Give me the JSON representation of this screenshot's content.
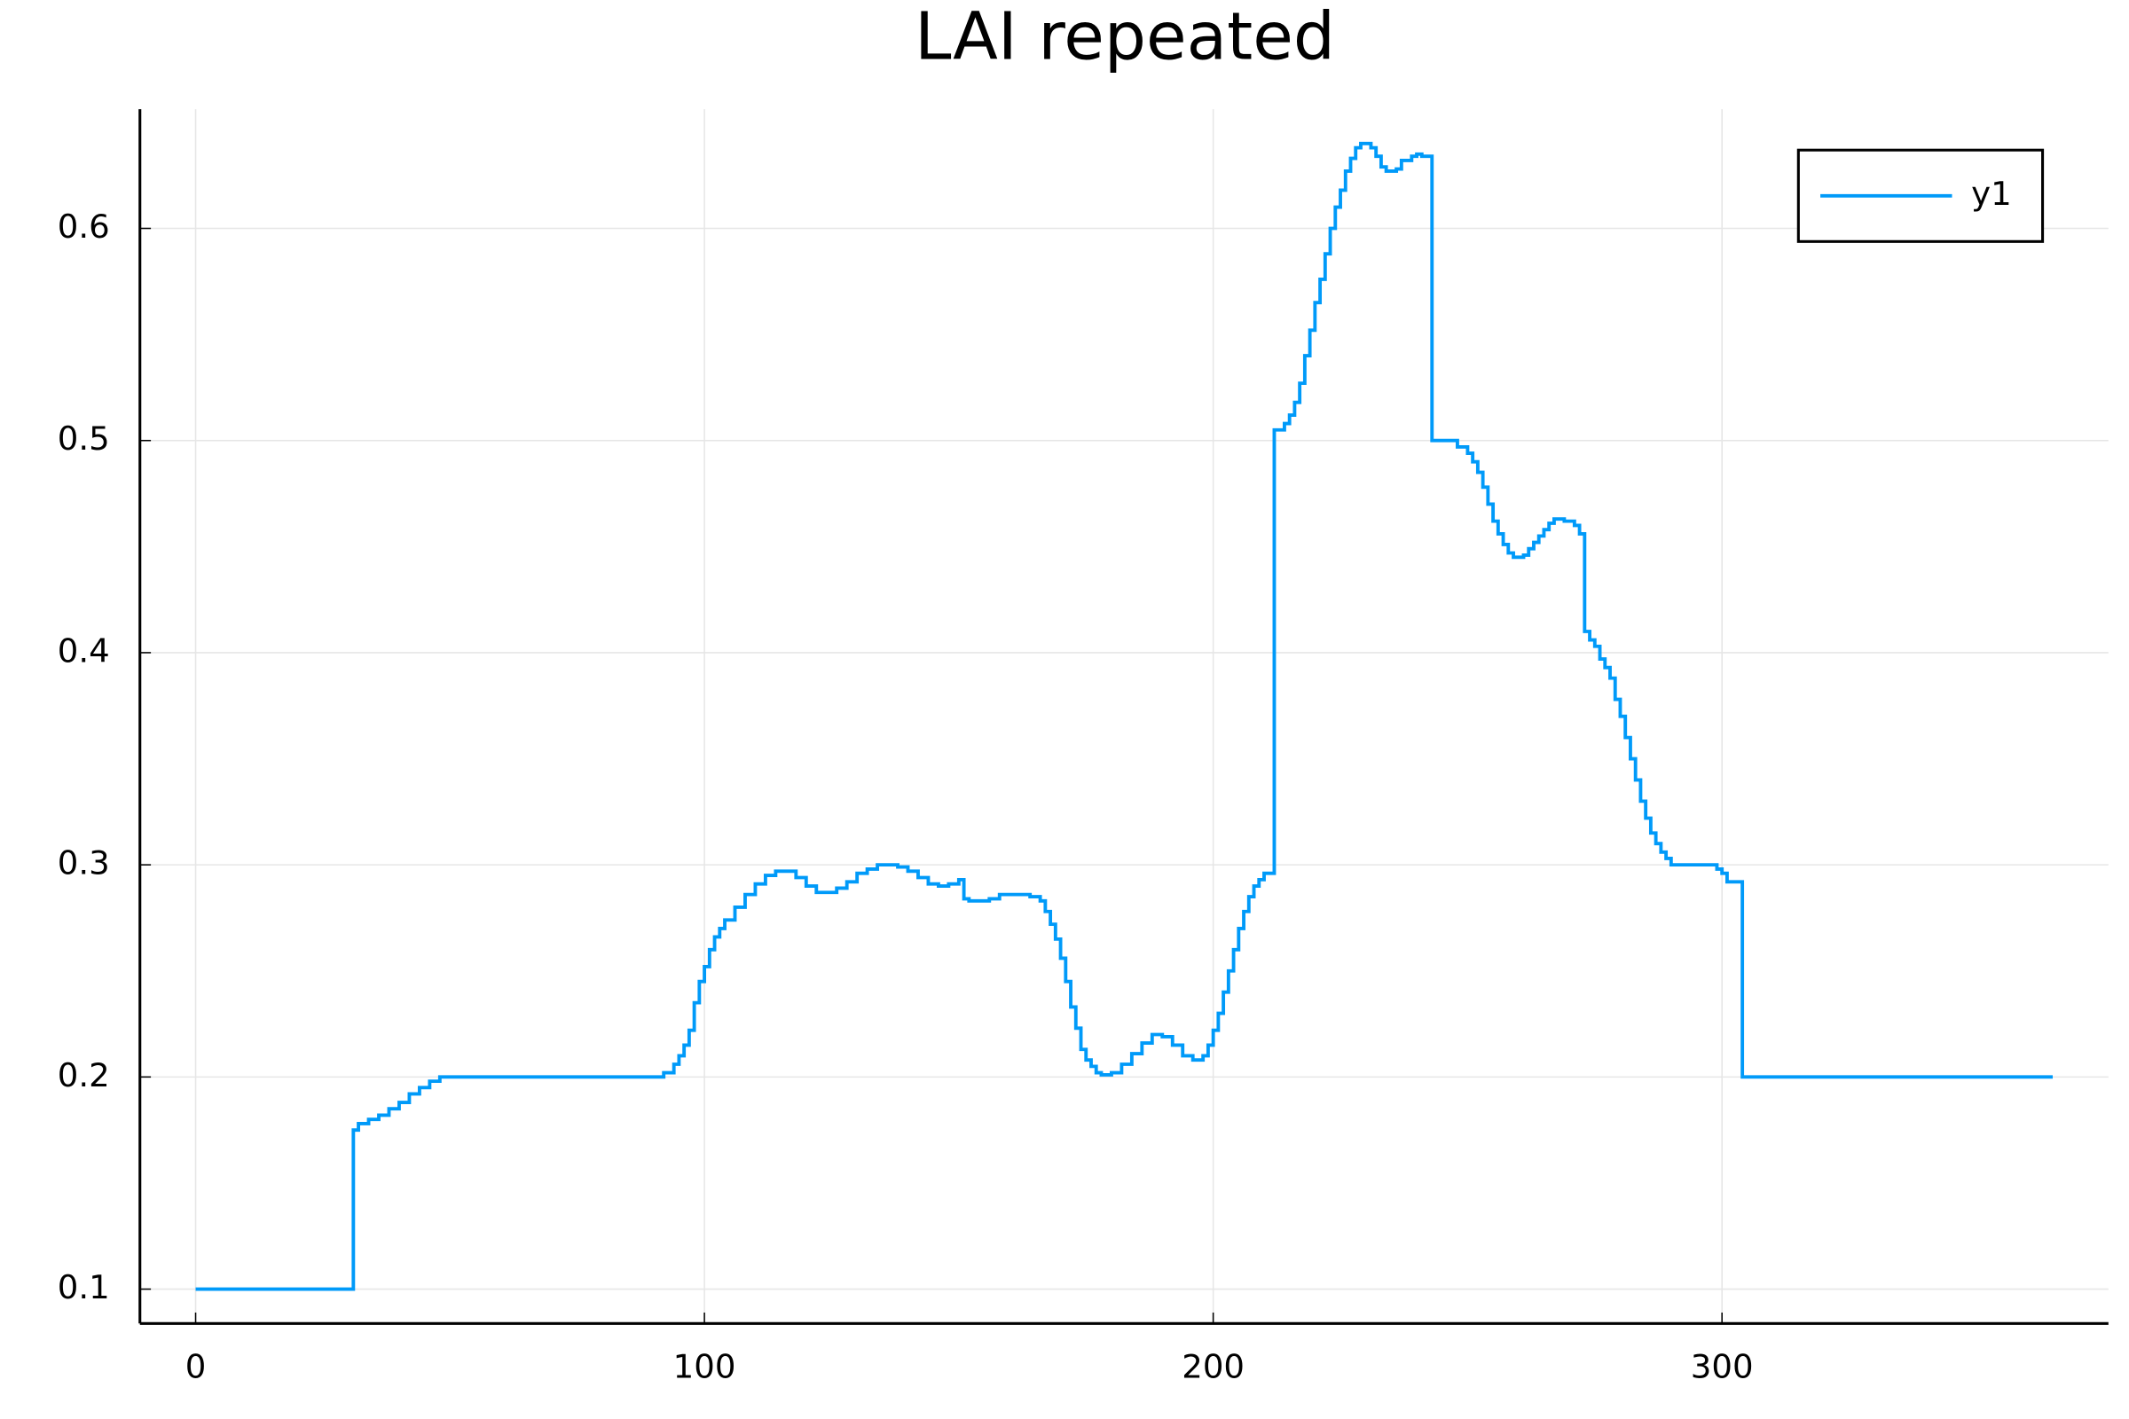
{
  "chart_data": {
    "type": "step",
    "title": "LAI repeated",
    "x": [
      0,
      31,
      32,
      34,
      36,
      38,
      40,
      42,
      44,
      46,
      48,
      92,
      94,
      95,
      96,
      97,
      98,
      99,
      100,
      101,
      102,
      103,
      104,
      106,
      108,
      110,
      112,
      114,
      116,
      118,
      120,
      122,
      124,
      126,
      128,
      130,
      132,
      134,
      136,
      138,
      140,
      142,
      144,
      146,
      148,
      150,
      151,
      152,
      154,
      156,
      158,
      160,
      162,
      164,
      166,
      167,
      168,
      169,
      170,
      171,
      172,
      173,
      174,
      175,
      176,
      177,
      178,
      180,
      182,
      184,
      186,
      188,
      190,
      192,
      194,
      196,
      198,
      199,
      200,
      201,
      202,
      203,
      204,
      205,
      206,
      207,
      208,
      209,
      210,
      212,
      214,
      215,
      216,
      217,
      218,
      219,
      220,
      221,
      222,
      223,
      224,
      225,
      226,
      227,
      228,
      229,
      231,
      232,
      233,
      234,
      236,
      237,
      239,
      240,
      241,
      243,
      248,
      250,
      251,
      252,
      253,
      254,
      255,
      256,
      257,
      258,
      259,
      261,
      262,
      263,
      264,
      265,
      266,
      267,
      269,
      271,
      272,
      273,
      274,
      275,
      276,
      277,
      278,
      279,
      280,
      281,
      282,
      283,
      284,
      285,
      286,
      287,
      288,
      289,
      290,
      299,
      300,
      301,
      304,
      365
    ],
    "series": [
      {
        "name": "y1",
        "color": "#009af9",
        "values": [
          0.1,
          0.175,
          0.178,
          0.18,
          0.182,
          0.185,
          0.188,
          0.192,
          0.195,
          0.198,
          0.2,
          0.202,
          0.206,
          0.21,
          0.215,
          0.222,
          0.235,
          0.245,
          0.252,
          0.26,
          0.266,
          0.27,
          0.274,
          0.28,
          0.286,
          0.291,
          0.295,
          0.297,
          0.297,
          0.294,
          0.29,
          0.287,
          0.287,
          0.289,
          0.292,
          0.296,
          0.298,
          0.3,
          0.3,
          0.299,
          0.297,
          0.294,
          0.291,
          0.29,
          0.291,
          0.293,
          0.284,
          0.283,
          0.283,
          0.284,
          0.286,
          0.286,
          0.286,
          0.285,
          0.283,
          0.278,
          0.272,
          0.265,
          0.256,
          0.245,
          0.233,
          0.223,
          0.213,
          0.208,
          0.205,
          0.202,
          0.201,
          0.202,
          0.206,
          0.211,
          0.216,
          0.22,
          0.219,
          0.215,
          0.21,
          0.208,
          0.21,
          0.215,
          0.222,
          0.23,
          0.24,
          0.25,
          0.26,
          0.27,
          0.278,
          0.285,
          0.29,
          0.293,
          0.296,
          0.505,
          0.508,
          0.512,
          0.518,
          0.527,
          0.54,
          0.552,
          0.565,
          0.576,
          0.588,
          0.6,
          0.61,
          0.618,
          0.627,
          0.633,
          0.638,
          0.64,
          0.638,
          0.634,
          0.629,
          0.627,
          0.628,
          0.632,
          0.634,
          0.635,
          0.634,
          0.5,
          0.497,
          0.494,
          0.49,
          0.485,
          0.478,
          0.47,
          0.462,
          0.456,
          0.451,
          0.447,
          0.445,
          0.446,
          0.449,
          0.452,
          0.455,
          0.458,
          0.461,
          0.463,
          0.462,
          0.46,
          0.456,
          0.41,
          0.406,
          0.403,
          0.397,
          0.393,
          0.388,
          0.378,
          0.37,
          0.36,
          0.35,
          0.34,
          0.33,
          0.322,
          0.315,
          0.31,
          0.306,
          0.303,
          0.3,
          0.298,
          0.296,
          0.292,
          0.2,
          0.2
        ]
      }
    ],
    "xlim": [
      -10.95,
      375.95
    ],
    "ylim": [
      0.0838,
      0.6562
    ],
    "xticks": [
      0,
      100,
      200,
      300
    ],
    "yticks": [
      0.1,
      0.2,
      0.3,
      0.4,
      0.5,
      0.6
    ],
    "grid": true,
    "legend": "top-right"
  }
}
